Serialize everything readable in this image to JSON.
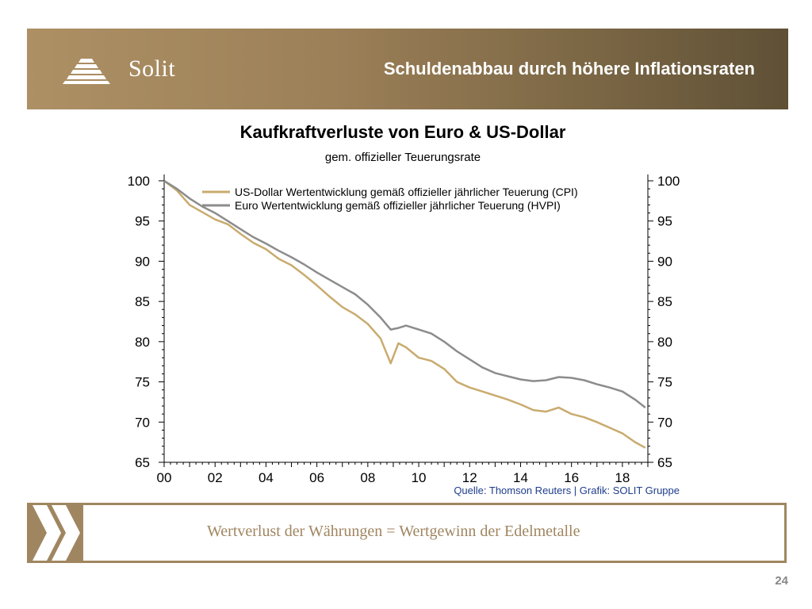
{
  "header": {
    "logo_text": "Solit",
    "title": "Schuldenabbau durch höhere Inflationsraten"
  },
  "footer": {
    "text": "Wertverlust der Währungen = Wertgewinn der Edelmetalle",
    "page_number": "24"
  },
  "colors": {
    "brand": "#a08660",
    "usd_series": "#c9ab6e",
    "eur_series": "#8c8c8c"
  },
  "chart_data": {
    "type": "line",
    "title": "Kaufkraftverluste von Euro & US-Dollar",
    "subtitle": "gem. offizieller Teuerungsrate",
    "source": "Quelle: Thomson Reuters | Grafik: SOLIT Gruppe",
    "xlabel": "",
    "ylabel": "",
    "xlim": [
      2000,
      2019
    ],
    "ylim": [
      65,
      100
    ],
    "x_ticks": [
      "00",
      "02",
      "04",
      "06",
      "08",
      "10",
      "12",
      "14",
      "16",
      "18"
    ],
    "y_ticks": [
      100,
      95,
      90,
      85,
      80,
      75,
      70,
      65
    ],
    "legend_position": "top-left",
    "series": [
      {
        "name": "US-Dollar Wertentwicklung gemäß offizieller jährlicher Teuerung (CPI)",
        "color": "#c9ab6e",
        "x": [
          2000.0,
          2000.5,
          2001.0,
          2001.5,
          2002.0,
          2002.5,
          2003.0,
          2003.5,
          2004.0,
          2004.5,
          2005.0,
          2005.5,
          2006.0,
          2006.5,
          2007.0,
          2007.5,
          2008.0,
          2008.5,
          2008.9,
          2009.2,
          2009.5,
          2010.0,
          2010.5,
          2011.0,
          2011.5,
          2012.0,
          2012.5,
          2013.0,
          2013.5,
          2014.0,
          2014.5,
          2015.0,
          2015.5,
          2016.0,
          2016.5,
          2017.0,
          2017.5,
          2018.0,
          2018.5,
          2018.9
        ],
        "values": [
          100.0,
          98.8,
          97.0,
          96.1,
          95.2,
          94.6,
          93.4,
          92.3,
          91.5,
          90.3,
          89.5,
          88.3,
          87.0,
          85.6,
          84.3,
          83.4,
          82.2,
          80.4,
          77.3,
          79.8,
          79.3,
          78.0,
          77.6,
          76.6,
          75.0,
          74.3,
          73.8,
          73.3,
          72.8,
          72.2,
          71.5,
          71.3,
          71.8,
          71.0,
          70.6,
          70.0,
          69.3,
          68.6,
          67.5,
          66.8
        ]
      },
      {
        "name": "Euro Wertentwicklung gemäß offizieller jährlicher Teuerung (HVPI)",
        "color": "#8c8c8c",
        "x": [
          2000.0,
          2000.5,
          2001.0,
          2001.5,
          2002.0,
          2002.5,
          2003.0,
          2003.5,
          2004.0,
          2004.5,
          2005.0,
          2005.5,
          2006.0,
          2006.5,
          2007.0,
          2007.5,
          2008.0,
          2008.5,
          2008.9,
          2009.2,
          2009.5,
          2010.0,
          2010.5,
          2011.0,
          2011.5,
          2012.0,
          2012.5,
          2013.0,
          2013.5,
          2014.0,
          2014.5,
          2015.0,
          2015.5,
          2016.0,
          2016.5,
          2017.0,
          2017.5,
          2018.0,
          2018.5,
          2018.9
        ],
        "values": [
          100.0,
          99.0,
          97.8,
          96.8,
          96.0,
          95.0,
          94.0,
          93.0,
          92.2,
          91.3,
          90.5,
          89.6,
          88.6,
          87.7,
          86.8,
          85.9,
          84.6,
          83.0,
          81.5,
          81.7,
          82.0,
          81.5,
          81.0,
          80.0,
          78.8,
          77.8,
          76.8,
          76.1,
          75.7,
          75.3,
          75.1,
          75.2,
          75.6,
          75.5,
          75.2,
          74.7,
          74.3,
          73.8,
          72.8,
          71.8
        ]
      }
    ]
  }
}
